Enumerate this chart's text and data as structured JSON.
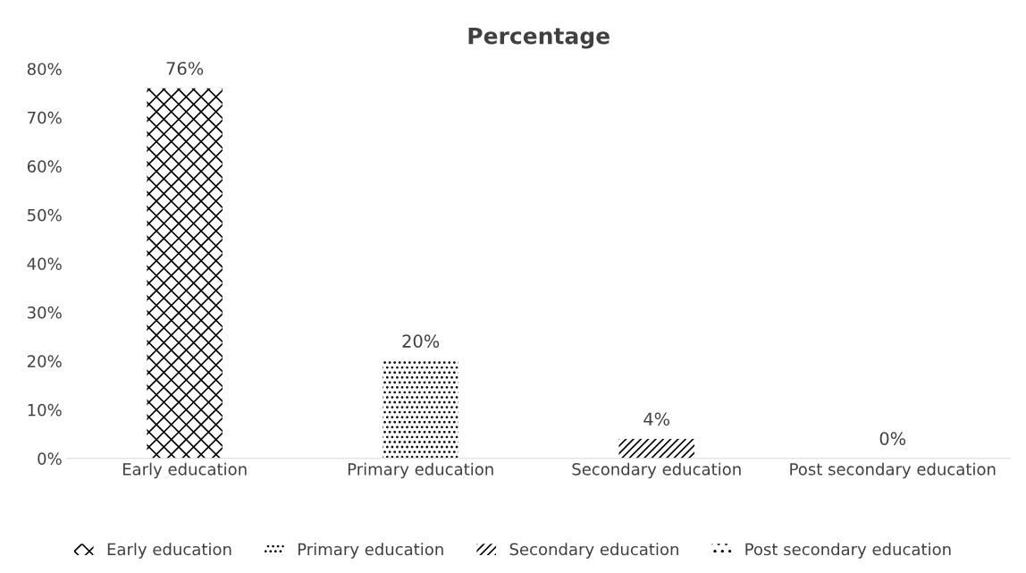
{
  "chart_data": {
    "type": "bar",
    "title": "Percentage",
    "categories": [
      "Early education",
      "Primary education",
      "Secondary education",
      "Post secondary education"
    ],
    "series": [
      {
        "name": "Early education",
        "color": "#000000",
        "values": [
          76,
          null,
          null,
          null
        ],
        "value_labels": [
          "76%",
          null,
          null,
          null
        ]
      },
      {
        "name": "Primary education",
        "color": "#000000",
        "values": [
          null,
          20,
          null,
          null
        ],
        "value_labels": [
          null,
          "20%",
          null,
          null
        ]
      },
      {
        "name": "Secondary education",
        "color": "#000000",
        "values": [
          null,
          null,
          4,
          null
        ],
        "value_labels": [
          null,
          null,
          "4%",
          null
        ]
      },
      {
        "name": "Post secondary education",
        "color": "#000000",
        "values": [
          null,
          null,
          null,
          0
        ],
        "value_labels": [
          null,
          null,
          null,
          "0%"
        ]
      }
    ],
    "ylim": [
      0,
      80
    ],
    "yticks": [
      {
        "value": 0,
        "label": "0%"
      },
      {
        "value": 10,
        "label": "10%"
      },
      {
        "value": 20,
        "label": "20%"
      },
      {
        "value": 30,
        "label": "30%"
      },
      {
        "value": 40,
        "label": "40%"
      },
      {
        "value": 50,
        "label": "50%"
      },
      {
        "value": 60,
        "label": "60%"
      },
      {
        "value": 70,
        "label": "70%"
      },
      {
        "value": 80,
        "label": "80%"
      }
    ],
    "grid": false,
    "legend": "bottom"
  }
}
